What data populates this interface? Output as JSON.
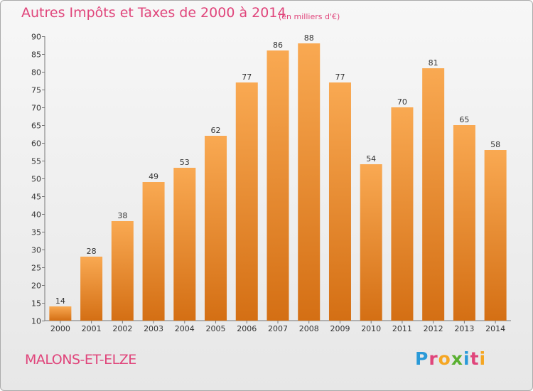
{
  "header": {
    "title": "Autres Impôts et Taxes de 2000 à 2014",
    "unit": "(en milliers d'€)"
  },
  "footer": {
    "commune": "MALONS-ET-ELZE",
    "logo_letters": [
      "P",
      "r",
      "o",
      "x",
      "i",
      "t",
      "i"
    ],
    "logo_colors": [
      "#2a9ad8",
      "#e0457b",
      "#f5a623",
      "#5ab031",
      "#2a9ad8",
      "#e0457b",
      "#f5a623"
    ]
  },
  "chart_data": {
    "type": "bar",
    "title": "Autres Impôts et Taxes de 2000 à 2014",
    "categories": [
      "2000",
      "2001",
      "2002",
      "2003",
      "2004",
      "2005",
      "2006",
      "2007",
      "2008",
      "2009",
      "2010",
      "2011",
      "2012",
      "2013",
      "2014"
    ],
    "values": [
      14,
      28,
      38,
      49,
      53,
      62,
      77,
      86,
      88,
      77,
      54,
      70,
      81,
      65,
      58
    ],
    "ylim": [
      10,
      90
    ],
    "yticks": [
      10,
      15,
      20,
      25,
      30,
      35,
      40,
      45,
      50,
      55,
      60,
      65,
      70,
      75,
      80,
      85,
      90
    ],
    "grid": false,
    "colors": {
      "bar_top": "#f9a952",
      "bar_bottom": "#d46f14",
      "axis": "#777777",
      "text": "#333333"
    }
  }
}
